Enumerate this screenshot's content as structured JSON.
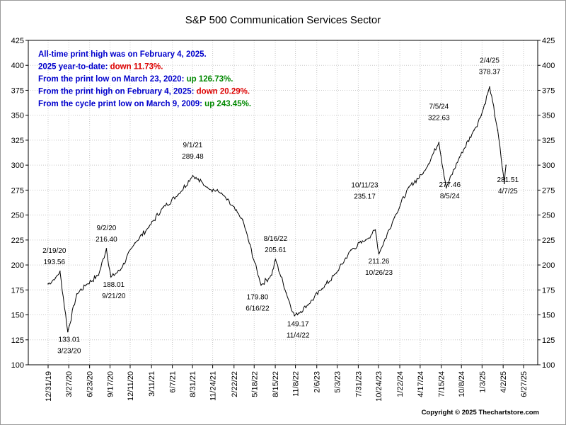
{
  "chart_data": {
    "type": "line",
    "title": "S&P 500 Communication Services Sector",
    "xlabel": "",
    "ylabel": "",
    "ylim": [
      100,
      425
    ],
    "yticks": [
      100,
      125,
      150,
      175,
      200,
      225,
      250,
      275,
      300,
      325,
      350,
      375,
      400,
      425
    ],
    "x_tick_labels": [
      "12/31/19",
      "3/27/20",
      "6/23/20",
      "9/17/20",
      "12/11/20",
      "3/11/21",
      "6/7/21",
      "8/31/21",
      "11/24/21",
      "2/22/22",
      "5/18/22",
      "8/15/22",
      "11/8/22",
      "2/6/23",
      "5/3/23",
      "7/31/23",
      "10/24/23",
      "1/22/24",
      "4/17/24",
      "7/15/24",
      "10/8/24",
      "1/3/25",
      "4/2/25",
      "6/27/25"
    ],
    "grid": true,
    "legend": "none",
    "color": "#000000",
    "series": [
      {
        "x": [
          "12/31/19",
          "1/31/20",
          "2/19/20",
          "3/23/20",
          "4/30/20",
          "6/8/20",
          "7/31/20",
          "9/2/20",
          "9/21/20",
          "10/31/20",
          "12/31/20",
          "2/28/21",
          "4/30/21",
          "6/30/21",
          "9/1/21",
          "10/31/21",
          "12/31/21",
          "3/31/22",
          "6/16/22",
          "7/31/22",
          "8/16/22",
          "9/30/22",
          "11/4/22",
          "12/31/22",
          "2/28/23",
          "4/30/23",
          "6/30/23",
          "8/31/23",
          "10/11/23",
          "10/26/23",
          "12/31/23",
          "2/29/24",
          "4/30/24",
          "7/5/24",
          "8/5/24",
          "9/30/24",
          "11/30/24",
          "12/31/24",
          "2/4/25",
          "3/10/25",
          "4/7/25",
          "4/14/25"
        ],
        "values": [
          181,
          187,
          193.56,
          133.01,
          171,
          180,
          190,
          216.4,
          188.01,
          195,
          222,
          238,
          258,
          270,
          289.48,
          278,
          272,
          245,
          179.8,
          190,
          205.61,
          172,
          149.17,
          160,
          176,
          192,
          215,
          225,
          235.17,
          211.26,
          248,
          278,
          292,
          322.63,
          277.46,
          308,
          335,
          350,
          378.37,
          335,
          281.51,
          300
        ]
      }
    ],
    "annotations": [
      {
        "date": "2/19/20",
        "value": "193.56"
      },
      {
        "date": "3/23/20",
        "value": "133.01"
      },
      {
        "date": "9/2/20",
        "value": "216.40"
      },
      {
        "date": "9/21/20",
        "value": "188.01"
      },
      {
        "date": "9/1/21",
        "value": "289.48"
      },
      {
        "date": "6/16/22",
        "value": "179.80"
      },
      {
        "date": "8/16/22",
        "value": "205.61"
      },
      {
        "date": "11/4/22",
        "value": "149.17"
      },
      {
        "date": "10/11/23",
        "value": "235.17"
      },
      {
        "date": "10/26/23",
        "value": "211.26"
      },
      {
        "date": "7/5/24",
        "value": "322.63"
      },
      {
        "date": "8/5/24",
        "value": "277.46"
      },
      {
        "date": "2/4/25",
        "value": "378.37"
      },
      {
        "date": "4/7/25",
        "value": "281.51"
      }
    ],
    "info_lines": [
      {
        "label": "All-time print high was on February 4, 2025.",
        "value": "",
        "value_color": "#0000cc"
      },
      {
        "label": "2025 year-to-date:",
        "value": "down 11.73%.",
        "value_color": "#dd0000"
      },
      {
        "label": "From the print low on March 23, 2020:",
        "value": "up 126.73%.",
        "value_color": "#008800"
      },
      {
        "label": "From the print high on February 4, 2025:",
        "value": "down 20.29%.",
        "value_color": "#dd0000"
      },
      {
        "label": "From the cycle print low on March 9, 2009:",
        "value": "up 243.45%.",
        "value_color": "#008800"
      }
    ],
    "label_color": "#0000cc",
    "copyright": "Copyright © 2025 Thechartstore.com"
  }
}
